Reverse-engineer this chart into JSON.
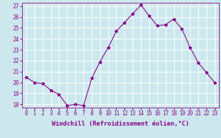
{
  "x": [
    0,
    1,
    2,
    3,
    4,
    5,
    6,
    7,
    8,
    9,
    10,
    11,
    12,
    13,
    14,
    15,
    16,
    17,
    18,
    19,
    20,
    21,
    22,
    23
  ],
  "y": [
    20.5,
    20.0,
    19.9,
    19.3,
    18.9,
    17.9,
    18.0,
    17.9,
    20.4,
    21.9,
    23.2,
    24.7,
    25.5,
    26.3,
    27.1,
    26.1,
    25.2,
    25.3,
    25.8,
    24.9,
    23.2,
    21.8,
    20.9,
    20.0
  ],
  "line_color": "#880088",
  "marker": "*",
  "marker_size": 3,
  "bg_color": "#cce8ee",
  "grid_color": "#bbdddd",
  "xlabel": "Windchill (Refroidissement éolien,°C)",
  "ylim_min": 17.7,
  "ylim_max": 27.3,
  "xlim_min": -0.5,
  "xlim_max": 23.5,
  "yticks": [
    18,
    19,
    20,
    21,
    22,
    23,
    24,
    25,
    26,
    27
  ],
  "xticks": [
    0,
    1,
    2,
    3,
    4,
    5,
    6,
    7,
    8,
    9,
    10,
    11,
    12,
    13,
    14,
    15,
    16,
    17,
    18,
    19,
    20,
    21,
    22,
    23
  ],
  "tick_fontsize": 5.5,
  "xlabel_fontsize": 6.5,
  "line_width": 0.8
}
